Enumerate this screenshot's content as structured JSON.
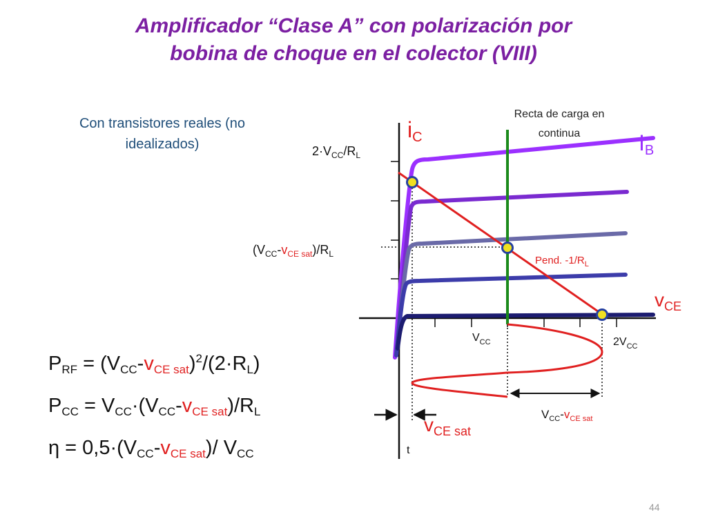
{
  "title": {
    "line1": "Amplificador “Clase A” con polarización por",
    "line2": "bobina de choque en el colector (VIII)"
  },
  "subtitle": {
    "line1": "Con transistores reales (no",
    "line2": "idealizados)"
  },
  "diagram": {
    "label_ic_main": "i",
    "label_ic_sub": "C",
    "label_ib_main": "I",
    "label_ib_sub": "B",
    "label_vce_main": "v",
    "label_vce_sub": "CE",
    "label_load_line_1": "Recta de carga en",
    "label_load_line_2": "continua",
    "label_2vcc_rl_pre": "2·V",
    "label_2vcc_rl_sub1": "CC",
    "label_2vcc_rl_mid": "/R",
    "label_2vcc_rl_sub2": "L",
    "label_vq_open": "(V",
    "label_vq_sub1": "CC",
    "label_vq_dash": "-",
    "label_vq_v": "v",
    "label_vq_sub2": "CE sat",
    "label_vq_close": ")/R",
    "label_vq_sub3": "L",
    "label_slope": "Pend. -1/R",
    "label_slope_sub": "L",
    "label_vcc_main": "V",
    "label_vcc_sub": "CC",
    "label_2vcc_main": "2V",
    "label_2vcc_sub": "CC",
    "label_swing_v": "V",
    "label_swing_sub1": "CC",
    "label_swing_dash": "-",
    "label_swing_v2": "v",
    "label_swing_sub2": "CE sat",
    "label_vcesat_main": "v",
    "label_vcesat_sub": "CE sat",
    "label_t": "t"
  },
  "formulas": {
    "prf_pre": "P",
    "prf_sub1": "RF",
    "prf_eq": " = (V",
    "prf_sub2": "CC",
    "prf_dash": "-",
    "prf_v": "v",
    "prf_sub3": "CE sat",
    "prf_close": ")",
    "prf_sup": "2",
    "prf_tail": "/(2·R",
    "prf_sub4": "L",
    "prf_end": ")",
    "pcc_pre": "P",
    "pcc_sub1": "CC",
    "pcc_eq": " = V",
    "pcc_sub2": "CC",
    "pcc_mid": "·(V",
    "pcc_sub3": "CC",
    "pcc_dash": "-",
    "pcc_v": "v",
    "pcc_sub4": "CE sat",
    "pcc_tail": ")/R",
    "pcc_sub5": "L",
    "eta_pre": "η = 0,5·(V",
    "eta_sub1": "CC",
    "eta_dash": "-",
    "eta_v": "v",
    "eta_sub2": "CE sat",
    "eta_tail": ")/ V",
    "eta_sub3": "CC"
  },
  "page_number": "44",
  "colors": {
    "title": "#7b1fa2",
    "subtitle": "#1f4e79",
    "load_line": "#1b8a1b",
    "ac_load_line": "#e02020",
    "waveform": "#e02020",
    "axes": "#111111",
    "dot_fill": "#f0e020",
    "dot_stroke": "#2540a0",
    "curve_1": "#9b30ff",
    "curve_2": "#7a2ad0",
    "curve_3": "#6a6aa8",
    "curve_4": "#3c3caa",
    "curve_5": "#1c1c70"
  }
}
